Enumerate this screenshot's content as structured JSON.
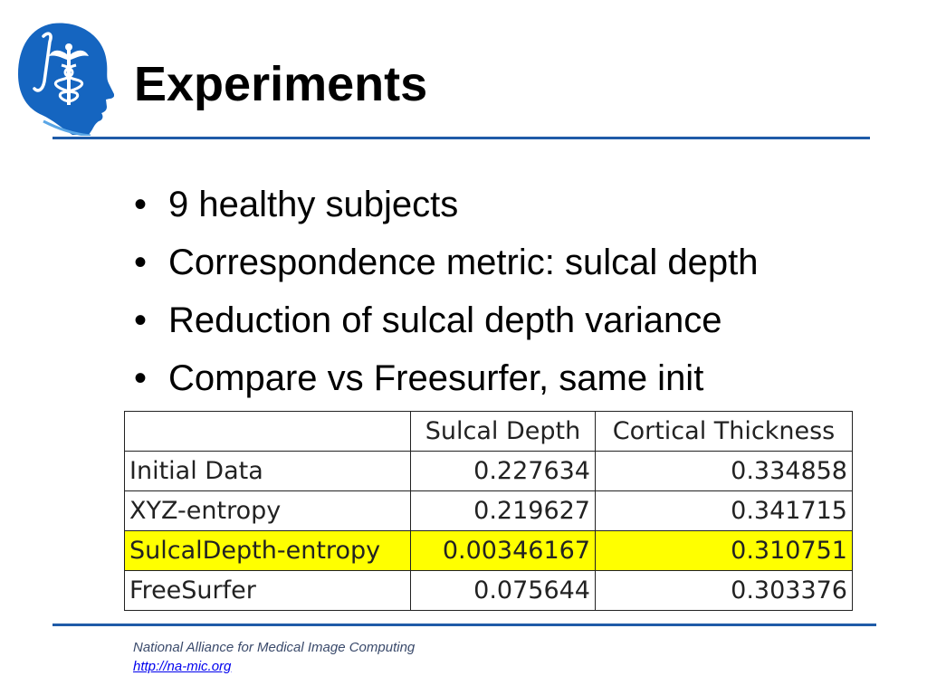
{
  "slide": {
    "title": "Experiments",
    "bullets": [
      "9 healthy subjects",
      "Correspondence metric: sulcal depth",
      "Reduction of sulcal depth variance",
      "Compare vs Freesurfer, same init"
    ],
    "bullet_glyph": "•"
  },
  "table": {
    "headers": [
      "",
      "Sulcal Depth",
      "Cortical Thickness"
    ],
    "rows": [
      {
        "label": "Initial Data",
        "sulcal_depth": "0.227634",
        "cortical_thickness": "0.334858"
      },
      {
        "label": "XYZ-entropy",
        "sulcal_depth": "0.219627",
        "cortical_thickness": "0.341715"
      },
      {
        "label": "SulcalDepth-entropy",
        "sulcal_depth": "0.00346167",
        "cortical_thickness": "0.310751"
      },
      {
        "label": "FreeSurfer",
        "sulcal_depth": "0.075644",
        "cortical_thickness": "0.303376"
      }
    ],
    "highlight_color": "#ffff00"
  },
  "footer": {
    "organization": "National Alliance for Medical Image Computing",
    "link": "http://na-mic.org"
  },
  "colors": {
    "accent": "#1f5ba8",
    "logo_blue": "#1565c0"
  },
  "icons": {
    "logo": "na-mic-head-caduceus-logo"
  }
}
